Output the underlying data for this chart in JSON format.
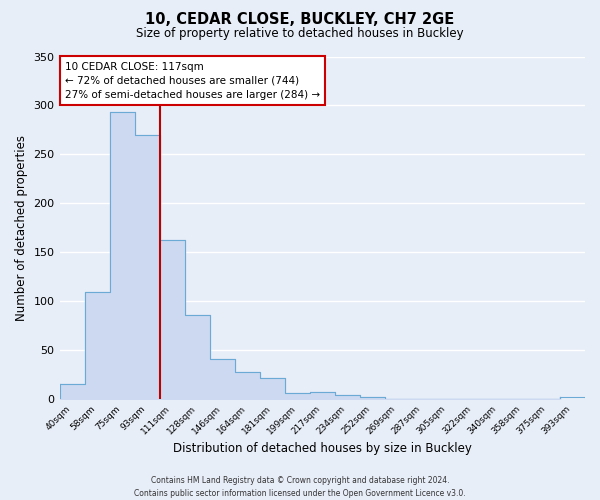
{
  "title": "10, CEDAR CLOSE, BUCKLEY, CH7 2GE",
  "subtitle": "Size of property relative to detached houses in Buckley",
  "xlabel": "Distribution of detached houses by size in Buckley",
  "ylabel": "Number of detached properties",
  "bin_labels": [
    "40sqm",
    "58sqm",
    "75sqm",
    "93sqm",
    "111sqm",
    "128sqm",
    "146sqm",
    "164sqm",
    "181sqm",
    "199sqm",
    "217sqm",
    "234sqm",
    "252sqm",
    "269sqm",
    "287sqm",
    "305sqm",
    "322sqm",
    "340sqm",
    "358sqm",
    "375sqm",
    "393sqm"
  ],
  "bar_values": [
    16,
    110,
    293,
    270,
    163,
    86,
    41,
    28,
    22,
    7,
    8,
    5,
    3,
    0,
    0,
    0,
    0,
    0,
    0,
    0,
    3
  ],
  "bar_color": "#ccd9f0",
  "bar_edge_color": "#6aaad4",
  "property_line_color": "#bb0000",
  "property_line_index": 4,
  "ylim": [
    0,
    350
  ],
  "yticks": [
    0,
    50,
    100,
    150,
    200,
    250,
    300,
    350
  ],
  "annotation_title": "10 CEDAR CLOSE: 117sqm",
  "annotation_line1": "← 72% of detached houses are smaller (744)",
  "annotation_line2": "27% of semi-detached houses are larger (284) →",
  "annotation_box_facecolor": "#ffffff",
  "annotation_box_edgecolor": "#cc0000",
  "footer_line1": "Contains HM Land Registry data © Crown copyright and database right 2024.",
  "footer_line2": "Contains public sector information licensed under the Open Government Licence v3.0.",
  "background_color": "#e8eef8",
  "grid_color": "#ffffff",
  "grid_linewidth": 1.0
}
